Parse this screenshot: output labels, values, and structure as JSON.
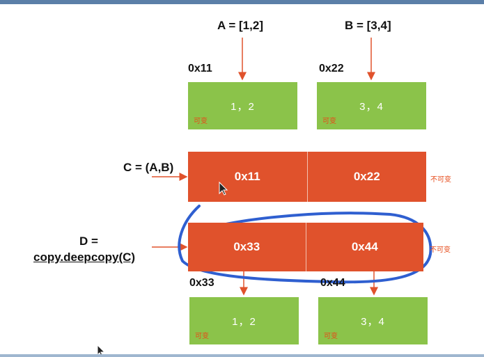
{
  "labels": {
    "a_assign": "A = [1,2]",
    "b_assign": "B = [3,4]",
    "c_assign": "C = (A,B)",
    "d_assign_line1": "D =",
    "d_assign_line2": "copy.deepcopy(C)"
  },
  "addresses": {
    "a_top": "0x11",
    "b_top": "0x22",
    "a_bottom": "0x33",
    "b_bottom": "0x44"
  },
  "lists_top": [
    {
      "value": "1，2",
      "mutability": "可变"
    },
    {
      "value": "3，4",
      "mutability": "可变"
    }
  ],
  "tuple_c": {
    "cells": [
      "0x11",
      "0x22"
    ],
    "mutability": "不可变"
  },
  "tuple_d": {
    "cells": [
      "0x33",
      "0x44"
    ],
    "mutability": "不可变"
  },
  "lists_bottom": [
    {
      "value": "1，2",
      "mutability": "可变"
    },
    {
      "value": "3，4",
      "mutability": "可变"
    }
  ],
  "colors": {
    "list_fill": "#8bc34a",
    "tuple_fill": "#e0522c",
    "arrow": "#e0522c",
    "mutability_text": "#e64a19",
    "annotation_pen": "#2f5fd0"
  }
}
